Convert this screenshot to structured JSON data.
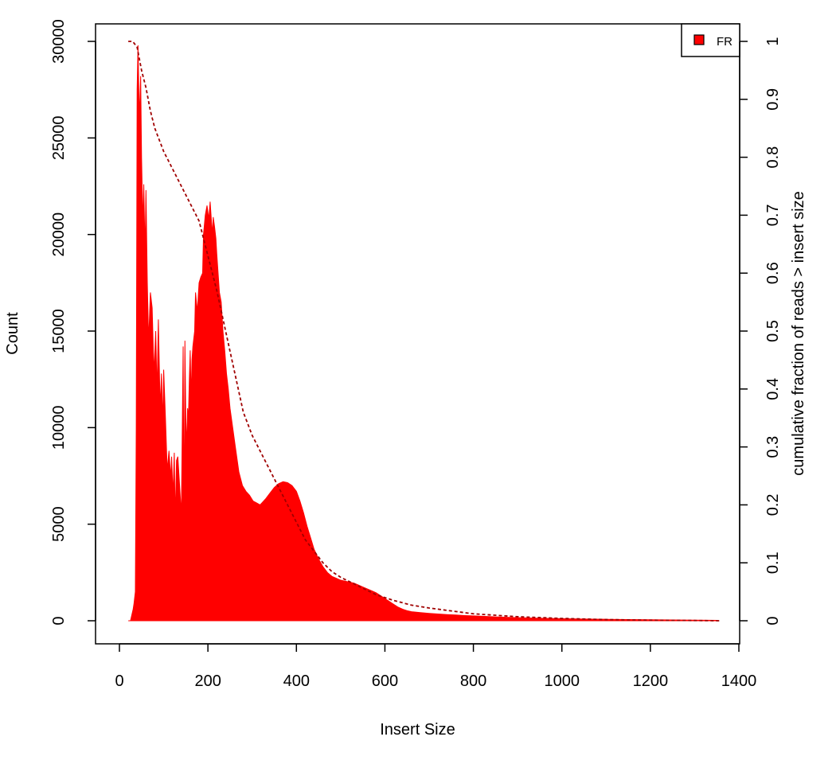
{
  "chart_data": {
    "type": "area",
    "xlabel": "Insert Size",
    "ylabel": "Count",
    "y2label": "cumulative fraction of reads > insert size",
    "xlim": [
      0,
      1400
    ],
    "ylim": [
      0,
      30000
    ],
    "y2lim": [
      0,
      1
    ],
    "x_ticks": [
      "0",
      "200",
      "400",
      "600",
      "800",
      "1000",
      "1200",
      "1400"
    ],
    "y_ticks": [
      "0",
      "5000",
      "10000",
      "15000",
      "20000",
      "25000",
      "30000"
    ],
    "y2_ticks": [
      "0",
      "0.1",
      "0.2",
      "0.3",
      "0.4",
      "0.5",
      "0.6",
      "0.7",
      "0.8",
      "0.9",
      "1"
    ],
    "grid": false,
    "legend_position": "top-right",
    "legend": [
      {
        "name": "FR",
        "color": "#ff0000"
      }
    ],
    "series": [
      {
        "name": "FR",
        "kind": "histogram",
        "color": "#ff0000",
        "x": [
          20,
          25,
          28,
          31,
          33,
          36,
          38,
          40,
          42,
          45,
          48,
          50,
          53,
          55,
          58,
          60,
          63,
          66,
          70,
          74,
          78,
          82,
          85,
          88,
          92,
          95,
          98,
          100,
          104,
          108,
          112,
          116,
          118,
          121,
          124,
          126,
          129,
          132,
          136,
          140,
          144,
          146,
          148,
          150,
          152,
          154,
          156,
          158,
          160,
          162,
          164,
          166,
          170,
          172,
          176,
          180,
          184,
          188,
          190,
          194,
          198,
          202,
          205,
          210,
          212,
          215,
          218,
          220,
          223,
          226,
          230,
          234,
          238,
          242,
          246,
          250,
          256,
          262,
          270,
          278,
          286,
          294,
          302,
          310,
          318,
          322,
          330,
          340,
          350,
          360,
          370,
          380,
          390,
          400,
          408,
          416,
          424,
          432,
          440,
          450,
          460,
          470,
          480,
          490,
          500,
          510,
          520,
          530,
          540,
          550,
          560,
          570,
          580,
          590,
          600,
          610,
          620,
          630,
          640,
          650,
          660,
          680,
          700,
          720,
          740,
          760,
          780,
          800,
          850,
          900,
          950,
          1000,
          1050,
          1100,
          1150,
          1200,
          1250,
          1300,
          1350
        ],
        "y": [
          0,
          0,
          300,
          600,
          900,
          1500,
          10000,
          27500,
          29800,
          26000,
          28200,
          24000,
          20500,
          22600,
          19000,
          22300,
          17500,
          14500,
          17000,
          16200,
          12800,
          15000,
          11800,
          15600,
          11000,
          12800,
          10200,
          13000,
          10500,
          7800,
          8800,
          7400,
          8500,
          6500,
          8700,
          5200,
          8300,
          8500,
          7000,
          5500,
          14200,
          4700,
          14500,
          10500,
          9000,
          11000,
          10500,
          12500,
          14000,
          11500,
          13500,
          14200,
          15000,
          17000,
          16000,
          17500,
          17800,
          18000,
          20000,
          21000,
          21500,
          20800,
          21700,
          20000,
          20900,
          20400,
          19800,
          19000,
          18000,
          17000,
          16500,
          15000,
          14000,
          12800,
          12000,
          11000,
          10000,
          9000,
          7700,
          7000,
          6700,
          6500,
          6200,
          6100,
          6000,
          6100,
          6300,
          6600,
          6900,
          7100,
          7200,
          7150,
          7000,
          6700,
          6200,
          5600,
          4900,
          4300,
          3700,
          3200,
          2800,
          2500,
          2300,
          2200,
          2100,
          2050,
          2000,
          1950,
          1850,
          1750,
          1650,
          1550,
          1450,
          1300,
          1150,
          1000,
          850,
          700,
          600,
          520,
          470,
          420,
          380,
          350,
          320,
          300,
          270,
          250,
          200,
          160,
          130,
          110,
          90,
          75,
          60,
          50,
          40,
          30,
          20
        ]
      },
      {
        "name": "cumulative fraction of reads > insert size",
        "kind": "line",
        "color": "#a00000",
        "axis": "right",
        "x": [
          20,
          30,
          40,
          50,
          60,
          70,
          80,
          90,
          100,
          120,
          140,
          160,
          180,
          200,
          220,
          240,
          260,
          280,
          300,
          320,
          340,
          360,
          380,
          400,
          420,
          440,
          460,
          480,
          500,
          540,
          580,
          620,
          660,
          700,
          760,
          800,
          900,
          1000,
          1100,
          1200,
          1300,
          1360
        ],
        "y": [
          1.0,
          1.0,
          0.99,
          0.95,
          0.92,
          0.88,
          0.85,
          0.83,
          0.81,
          0.78,
          0.75,
          0.72,
          0.69,
          0.63,
          0.57,
          0.5,
          0.43,
          0.36,
          0.32,
          0.29,
          0.26,
          0.23,
          0.2,
          0.17,
          0.14,
          0.12,
          0.1,
          0.085,
          0.075,
          0.06,
          0.045,
          0.035,
          0.027,
          0.022,
          0.016,
          0.012,
          0.007,
          0.004,
          0.002,
          0.001,
          0.0004,
          0.0
        ]
      }
    ]
  }
}
